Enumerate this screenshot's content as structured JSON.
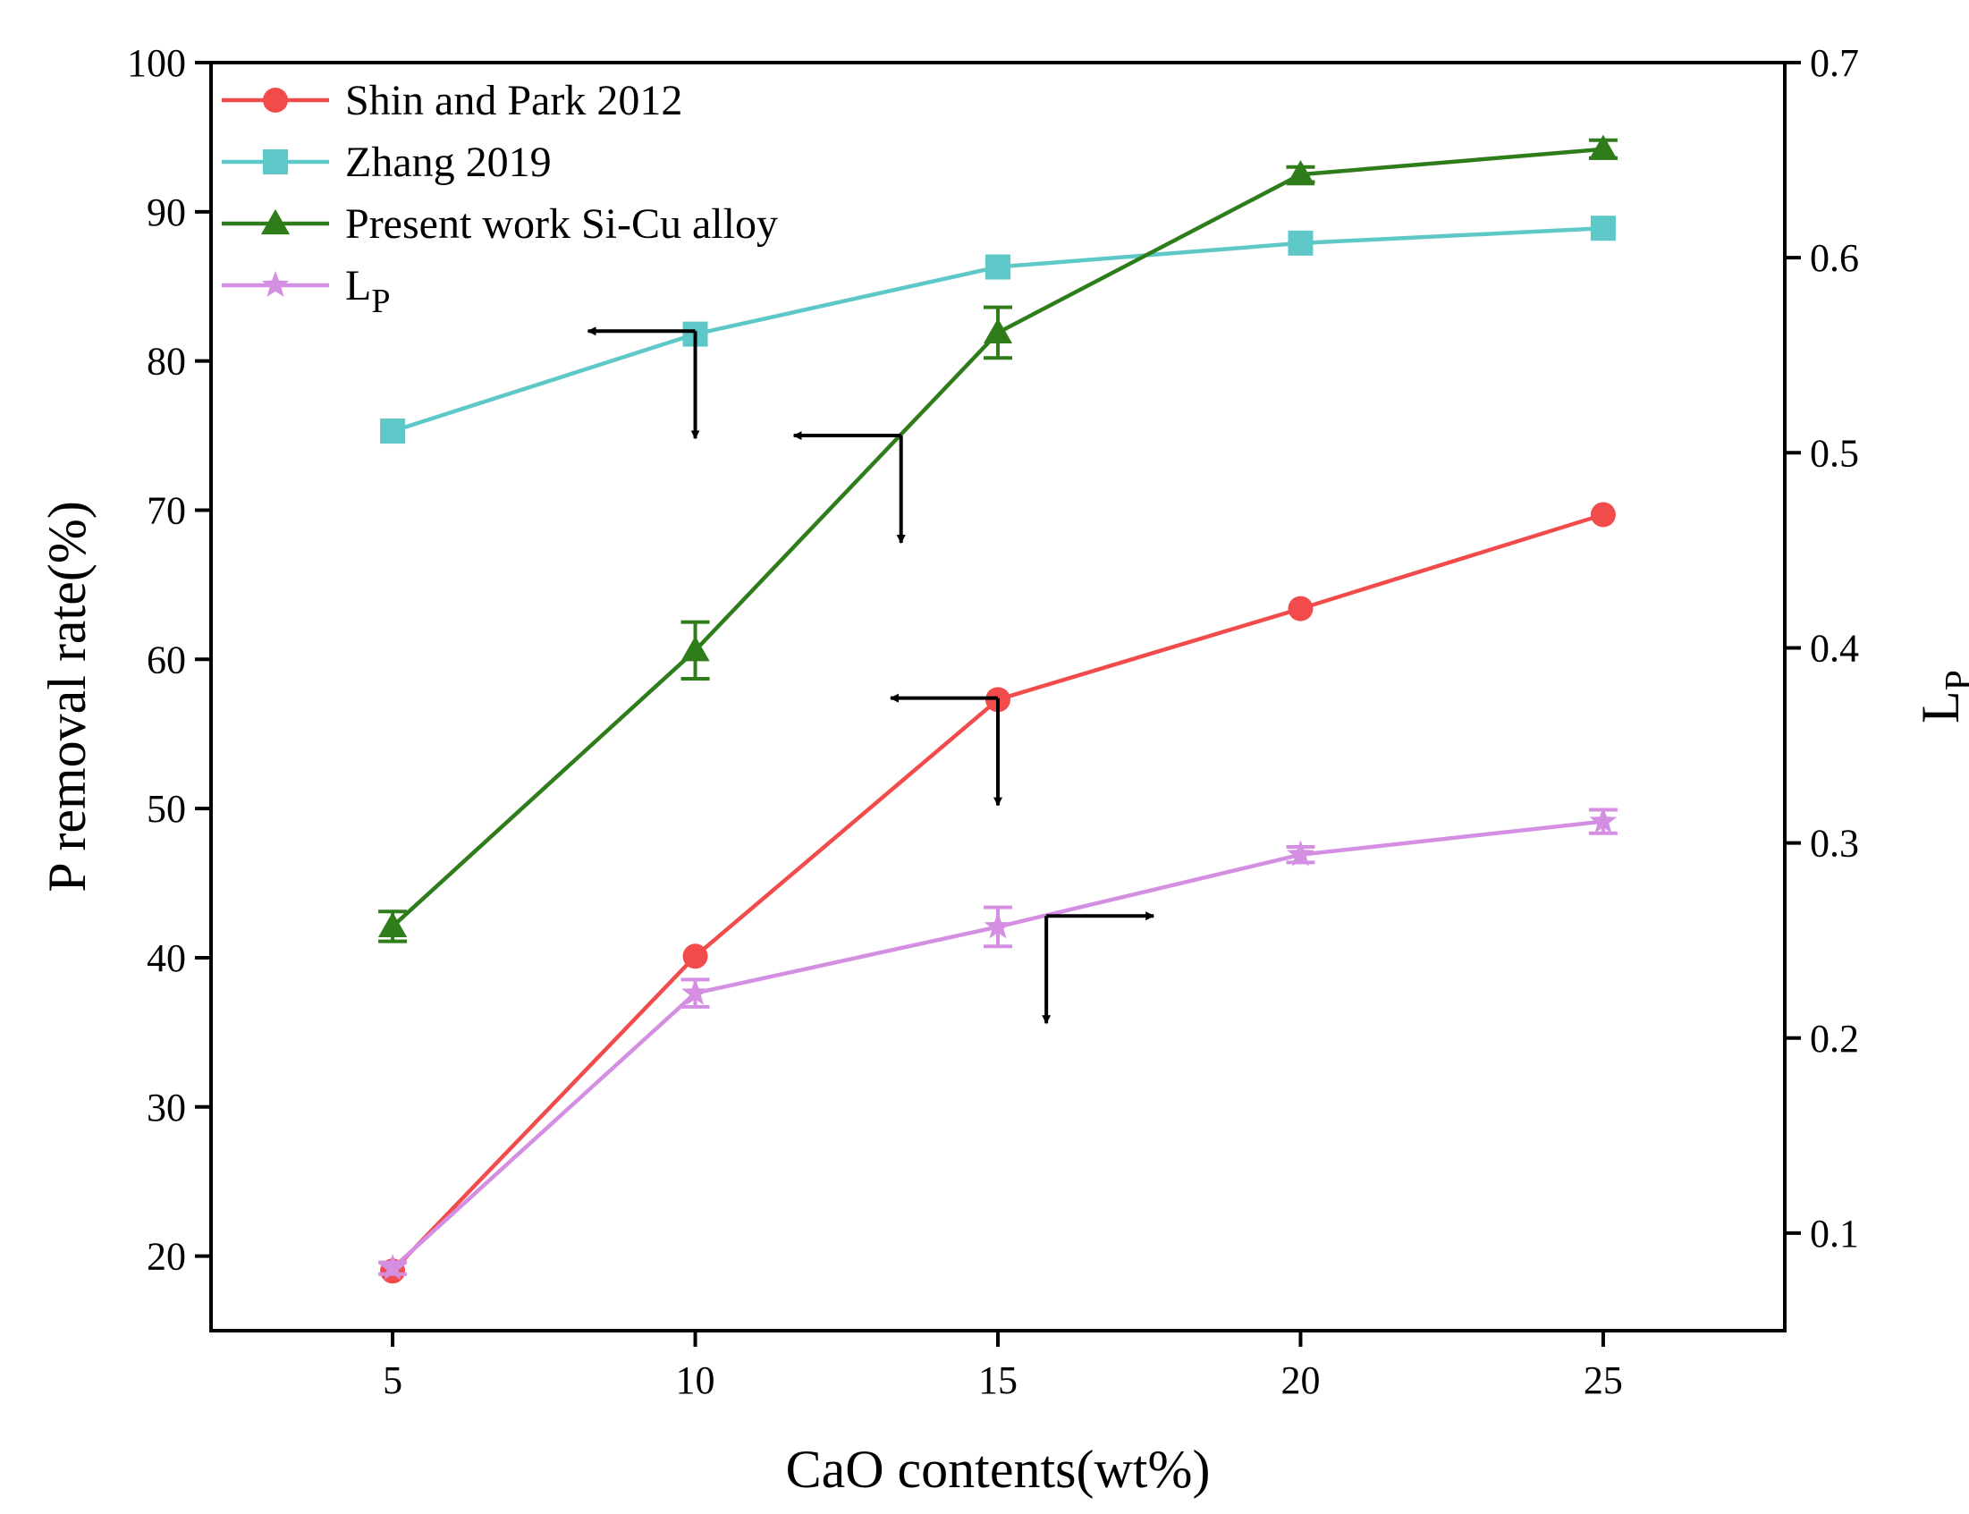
{
  "chart_data": {
    "type": "line",
    "title": "",
    "xlabel": "CaO contents(wt%)",
    "ylabel": "P removal rate(%)",
    "y2label": {
      "main": "L",
      "sub": "P"
    },
    "xlim": [
      2,
      28
    ],
    "ylim": [
      15,
      100
    ],
    "y2lim": [
      0.05,
      0.7
    ],
    "xticks": [
      5,
      10,
      15,
      20,
      25
    ],
    "yticks": [
      20,
      30,
      40,
      50,
      60,
      70,
      80,
      90,
      100
    ],
    "y2ticks": [
      0.1,
      0.2,
      0.3,
      0.4,
      0.5,
      0.6,
      0.7
    ],
    "y2tick_labels": [
      "0.1",
      "0.2",
      "0.3",
      "0.4",
      "0.5",
      "0.6",
      "0.7"
    ],
    "legend_position": "top-left",
    "series": [
      {
        "name": "Shin and Park 2012",
        "axis": "left",
        "color": "#f24b4b",
        "marker": "circle",
        "x": [
          5,
          10,
          15,
          20,
          25
        ],
        "values": [
          19,
          40.1,
          57.3,
          63.4,
          69.7
        ],
        "errors": null
      },
      {
        "name": "Zhang 2019",
        "axis": "left",
        "color": "#5ec8c8",
        "marker": "square",
        "x": [
          5,
          10,
          15,
          20,
          25
        ],
        "values": [
          75.3,
          81.8,
          86.3,
          87.9,
          88.9
        ],
        "errors": null
      },
      {
        "name": "Present work Si-Cu alloy",
        "axis": "left",
        "color": "#2e7d1a",
        "marker": "triangle",
        "x": [
          5,
          10,
          15,
          20,
          25
        ],
        "values": [
          42.1,
          60.6,
          81.9,
          92.5,
          94.2
        ],
        "errors": [
          1.0,
          1.9,
          1.7,
          0.5,
          0.6
        ]
      },
      {
        "name": "L",
        "name_sub": "P",
        "axis": "right",
        "color": "#d48fe3",
        "marker": "star",
        "x": [
          5,
          10,
          15,
          20,
          25
        ],
        "values": [
          0.082,
          0.223,
          0.257,
          0.294,
          0.311
        ],
        "errors": [
          0.003,
          0.007,
          0.01,
          0.004,
          0.006
        ]
      }
    ],
    "annotations": [
      {
        "type": "axis-indicator-arrow",
        "points_to": "left axis",
        "x": 10,
        "y": 82
      },
      {
        "type": "axis-indicator-arrow",
        "points_to": "left axis",
        "x": 13.4,
        "y": 75
      },
      {
        "type": "axis-indicator-arrow",
        "points_to": "left axis",
        "x": 15,
        "y": 57.4
      },
      {
        "type": "axis-indicator-arrow",
        "points_to": "right axis",
        "x": 15.8,
        "y": 42.8
      }
    ]
  }
}
